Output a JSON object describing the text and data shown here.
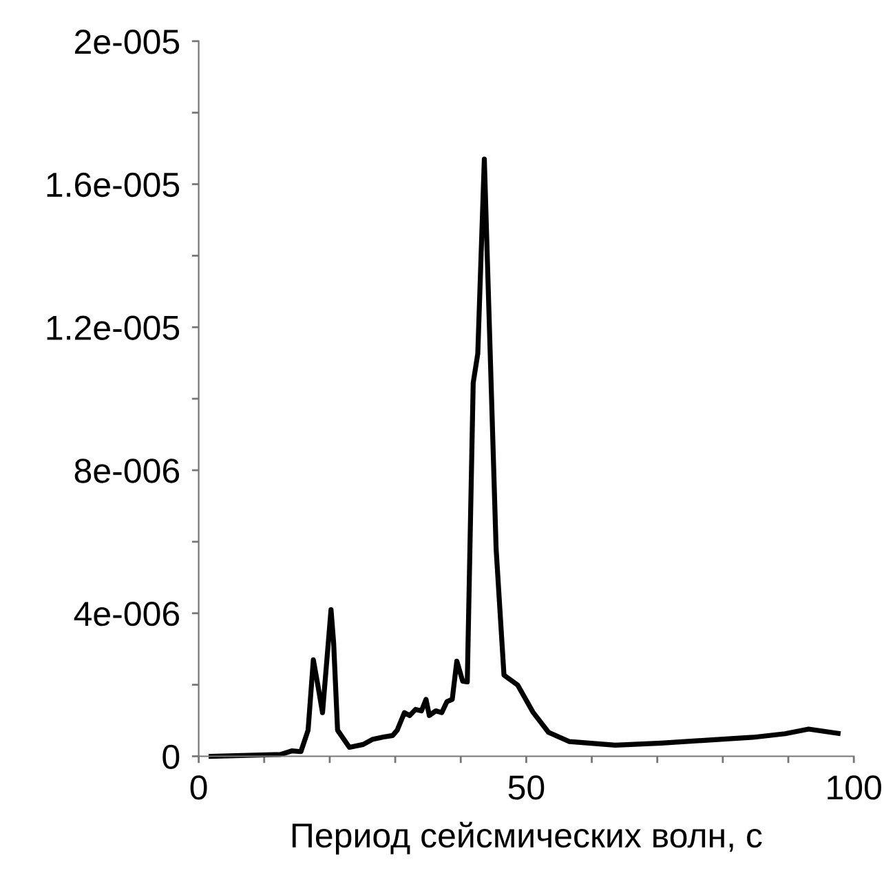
{
  "chart_data": {
    "type": "line",
    "xlabel": "Период сейсмических волн, с",
    "xlim": [
      0,
      100
    ],
    "ylim": [
      0,
      2e-05
    ],
    "xticks": [
      0,
      {
        "value": 10,
        "label": null
      },
      {
        "value": 20,
        "label": null
      },
      {
        "value": 30,
        "label": null
      },
      {
        "value": 40,
        "label": null
      },
      50,
      {
        "value": 60,
        "label": null
      },
      {
        "value": 70,
        "label": null
      },
      {
        "value": 80,
        "label": null
      },
      {
        "value": 90,
        "label": null
      },
      100
    ],
    "yticks": [
      0,
      {
        "value": 2e-06,
        "label": null
      },
      {
        "value": 4e-06,
        "label": "4e-006"
      },
      {
        "value": 6e-06,
        "label": null
      },
      {
        "value": 8e-06,
        "label": "8e-006"
      },
      {
        "value": 1e-05,
        "label": null
      },
      {
        "value": 1.2e-05,
        "label": "1.2e-005"
      },
      {
        "value": 1.4e-05,
        "label": null
      },
      {
        "value": 1.6e-05,
        "label": "1.6e-005"
      },
      {
        "value": 1.8e-05,
        "label": null
      },
      {
        "value": 2e-05,
        "label": "2e-005"
      }
    ],
    "grid": false,
    "marker": "none",
    "line_style": "solid",
    "series": [
      {
        "color": "#000000",
        "x": [
          1.9,
          12.5,
          14.2,
          15.6,
          16.7,
          17.5,
          18.1,
          18.9,
          20.2,
          20.6,
          21.2,
          23.0,
          25.1,
          26.5,
          28.2,
          29.6,
          30.3,
          31.4,
          32.2,
          33.1,
          34.0,
          34.7,
          35.2,
          36.2,
          37.1,
          37.9,
          38.7,
          39.4,
          40.3,
          41.0,
          41.9,
          42.6,
          43.6,
          45.4,
          46.6,
          48.7,
          51.0,
          53.4,
          56.6,
          63.6,
          70.6,
          77.6,
          84.6,
          89.5,
          93.1,
          97.6
        ],
        "values": [
          0,
          5e-08,
          1.5e-07,
          1.3e-07,
          7.3e-07,
          2.7e-06,
          2.08e-06,
          1.22e-06,
          4.1e-06,
          3.17e-06,
          7.3e-07,
          2.5e-07,
          3.3e-07,
          4.7e-07,
          5.4e-07,
          5.8e-07,
          7.3e-07,
          1.22e-06,
          1.14e-06,
          1.31e-06,
          1.27e-06,
          1.59e-06,
          1.14e-06,
          1.27e-06,
          1.22e-06,
          1.53e-06,
          1.59e-06,
          2.66e-06,
          2.1e-06,
          2.08e-06,
          1.044e-05,
          1.126e-05,
          1.67e-05,
          5.8e-06,
          2.27e-06,
          1.99e-06,
          1.24e-06,
          6.7e-07,
          4.1e-07,
          3.1e-07,
          3.7e-07,
          4.5e-07,
          5.3e-07,
          6.3e-07,
          7.6e-07,
          6.4e-07
        ]
      }
    ]
  }
}
